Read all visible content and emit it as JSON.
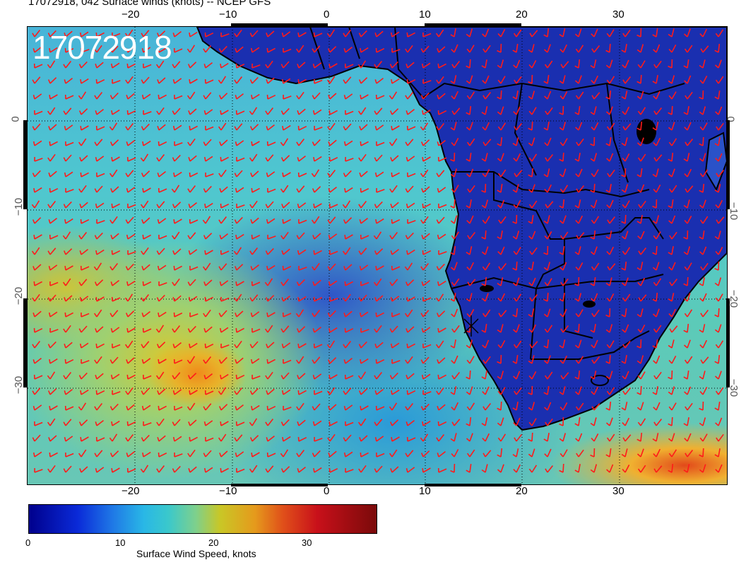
{
  "title": "17072918, 042 Surface winds (knots) -- NCEP GFS",
  "stamp": "17072918",
  "lon_ticks_top": [
    "−20",
    "−10",
    "0",
    "10",
    "20",
    "30"
  ],
  "lon_ticks_bottom": [
    "−20",
    "−10",
    "0",
    "10",
    "20",
    "30"
  ],
  "lat_ticks_left": [
    "0",
    "−10",
    "−20",
    "−30"
  ],
  "lat_ticks_right": [
    "0",
    "−10",
    "−20",
    "−30"
  ],
  "colorbar": {
    "label": "Surface Wind Speed, knots",
    "ticks": [
      "0",
      "10",
      "20",
      "30"
    ],
    "min": 0,
    "max": 37,
    "colors": [
      "#00008c",
      "#0a2ad8",
      "#1f78e6",
      "#29b7e6",
      "#3ac8cc",
      "#7ed08c",
      "#c9c726",
      "#e59a1c",
      "#e0501a",
      "#c8101a",
      "#7a0a0a"
    ]
  },
  "map": {
    "projection": "cylindrical",
    "lon_range": [
      -30,
      40
    ],
    "lat_range": [
      -38,
      8
    ],
    "land_color": "#1a2fb0",
    "barb_color": "#ff1a1a",
    "grid": true
  }
}
